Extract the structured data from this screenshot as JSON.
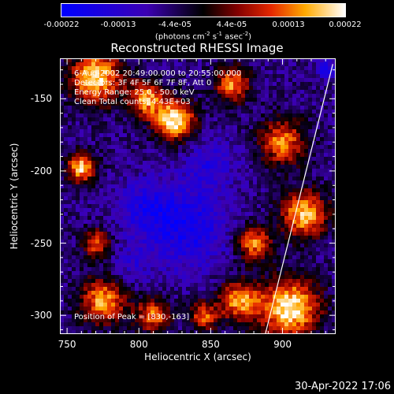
{
  "colorbar": {
    "ticks": [
      "-0.00022",
      "-0.00013",
      "-4.4e-05",
      "4.4e-05",
      "0.00013",
      "0.00022"
    ],
    "unit_prefix": "(photons cm",
    "unit_exp1": "-2",
    "unit_s": " s",
    "unit_exp2": "-1",
    "unit_asec": " asec",
    "unit_exp3": "-2",
    "unit_suffix": ")"
  },
  "info": {
    "line1": "6-Aug-2002 20:49:00.000 to 20:55:00.000",
    "line2": "Detectors: 3F 4F 5F 6F 7F 8F, Att 0",
    "line3": "Energy Range: 25.0 - 50.0 keV",
    "line4": "Clean    Total counts: 4.43E+03",
    "peak": "Position of Peak = [830,-163]"
  },
  "timestamp": "30-Apr-2022 17:06",
  "colors": {
    "cmap_low": "#0000ff",
    "cmap_mid": "#000000",
    "cmap_high": "#ffffff",
    "limb_line": "#ffffff"
  },
  "chart_data": {
    "type": "heatmap",
    "title": "Reconstructed RHESSI Image",
    "xlabel": "Heliocentric X (arcsec)",
    "ylabel": "Heliocentric Y (arcsec)",
    "x_ticks": [
      "750",
      "800",
      "850",
      "900"
    ],
    "y_ticks": [
      "-150",
      "-200",
      "-250",
      "-300"
    ],
    "x_tick_values": [
      750,
      800,
      850,
      900
    ],
    "y_tick_values": [
      -150,
      -200,
      -250,
      -300
    ],
    "xlim": [
      745,
      937
    ],
    "ylim": [
      -313,
      -122
    ],
    "zlim": [
      -0.00022,
      0.00022
    ],
    "colorbar_position": "top",
    "grid": false,
    "peak": [
      830,
      -163
    ],
    "limb_line": [
      [
        888,
        -313
      ],
      [
        935,
        -126
      ]
    ],
    "bright_regions": [
      {
        "x": 770,
        "y": -135,
        "value": 0.0002,
        "radius": 18
      },
      {
        "x": 825,
        "y": -165,
        "value": 0.00022,
        "radius": 14
      },
      {
        "x": 805,
        "y": -150,
        "value": 0.00016,
        "radius": 12
      },
      {
        "x": 760,
        "y": -198,
        "value": 0.00019,
        "radius": 10
      },
      {
        "x": 865,
        "y": -140,
        "value": 0.00015,
        "radius": 12
      },
      {
        "x": 900,
        "y": -180,
        "value": 0.00014,
        "radius": 16
      },
      {
        "x": 915,
        "y": -230,
        "value": 0.00018,
        "radius": 16
      },
      {
        "x": 880,
        "y": -250,
        "value": 0.00015,
        "radius": 12
      },
      {
        "x": 905,
        "y": -295,
        "value": 0.00022,
        "radius": 20
      },
      {
        "x": 870,
        "y": -290,
        "value": 0.00016,
        "radius": 14
      },
      {
        "x": 775,
        "y": -290,
        "value": 0.00016,
        "radius": 16
      },
      {
        "x": 810,
        "y": -300,
        "value": 0.00013,
        "radius": 12
      },
      {
        "x": 770,
        "y": -250,
        "value": 0.00011,
        "radius": 10
      },
      {
        "x": 845,
        "y": -300,
        "value": 0.00012,
        "radius": 10
      }
    ],
    "dark_regions": [
      {
        "x": 835,
        "y": -240,
        "value": -0.00018,
        "radius": 28
      },
      {
        "x": 805,
        "y": -225,
        "value": -0.00015,
        "radius": 20
      },
      {
        "x": 850,
        "y": -195,
        "value": -0.00014,
        "radius": 18
      },
      {
        "x": 930,
        "y": -130,
        "value": -0.0002,
        "radius": 6
      },
      {
        "x": 795,
        "y": -265,
        "value": -0.00012,
        "radius": 14
      }
    ]
  }
}
